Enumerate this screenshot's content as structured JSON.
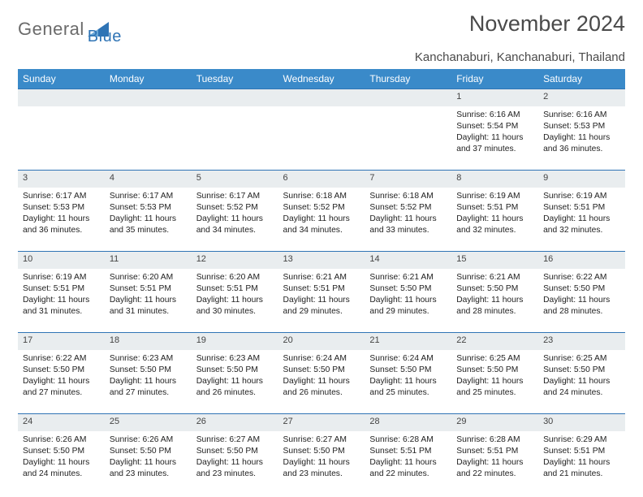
{
  "brand": {
    "part1": "General",
    "part2": "Blue",
    "triangle_color": "#2f74b5"
  },
  "header": {
    "title": "November 2024",
    "location": "Kanchanaburi, Kanchanaburi, Thailand"
  },
  "colors": {
    "header_bg": "#3a8ac9",
    "header_text": "#ffffff",
    "daynum_bg": "#e9edef",
    "cell_border": "#2f74b5",
    "body_text": "#222222",
    "title_text": "#4a4a4a"
  },
  "daynames": [
    "Sunday",
    "Monday",
    "Tuesday",
    "Wednesday",
    "Thursday",
    "Friday",
    "Saturday"
  ],
  "weeks": [
    {
      "nums": [
        "",
        "",
        "",
        "",
        "",
        "1",
        "2"
      ],
      "cells": [
        [],
        [],
        [],
        [],
        [],
        [
          "Sunrise: 6:16 AM",
          "Sunset: 5:54 PM",
          "Daylight: 11 hours",
          "and 37 minutes."
        ],
        [
          "Sunrise: 6:16 AM",
          "Sunset: 5:53 PM",
          "Daylight: 11 hours",
          "and 36 minutes."
        ]
      ]
    },
    {
      "nums": [
        "3",
        "4",
        "5",
        "6",
        "7",
        "8",
        "9"
      ],
      "cells": [
        [
          "Sunrise: 6:17 AM",
          "Sunset: 5:53 PM",
          "Daylight: 11 hours",
          "and 36 minutes."
        ],
        [
          "Sunrise: 6:17 AM",
          "Sunset: 5:53 PM",
          "Daylight: 11 hours",
          "and 35 minutes."
        ],
        [
          "Sunrise: 6:17 AM",
          "Sunset: 5:52 PM",
          "Daylight: 11 hours",
          "and 34 minutes."
        ],
        [
          "Sunrise: 6:18 AM",
          "Sunset: 5:52 PM",
          "Daylight: 11 hours",
          "and 34 minutes."
        ],
        [
          "Sunrise: 6:18 AM",
          "Sunset: 5:52 PM",
          "Daylight: 11 hours",
          "and 33 minutes."
        ],
        [
          "Sunrise: 6:19 AM",
          "Sunset: 5:51 PM",
          "Daylight: 11 hours",
          "and 32 minutes."
        ],
        [
          "Sunrise: 6:19 AM",
          "Sunset: 5:51 PM",
          "Daylight: 11 hours",
          "and 32 minutes."
        ]
      ]
    },
    {
      "nums": [
        "10",
        "11",
        "12",
        "13",
        "14",
        "15",
        "16"
      ],
      "cells": [
        [
          "Sunrise: 6:19 AM",
          "Sunset: 5:51 PM",
          "Daylight: 11 hours",
          "and 31 minutes."
        ],
        [
          "Sunrise: 6:20 AM",
          "Sunset: 5:51 PM",
          "Daylight: 11 hours",
          "and 31 minutes."
        ],
        [
          "Sunrise: 6:20 AM",
          "Sunset: 5:51 PM",
          "Daylight: 11 hours",
          "and 30 minutes."
        ],
        [
          "Sunrise: 6:21 AM",
          "Sunset: 5:51 PM",
          "Daylight: 11 hours",
          "and 29 minutes."
        ],
        [
          "Sunrise: 6:21 AM",
          "Sunset: 5:50 PM",
          "Daylight: 11 hours",
          "and 29 minutes."
        ],
        [
          "Sunrise: 6:21 AM",
          "Sunset: 5:50 PM",
          "Daylight: 11 hours",
          "and 28 minutes."
        ],
        [
          "Sunrise: 6:22 AM",
          "Sunset: 5:50 PM",
          "Daylight: 11 hours",
          "and 28 minutes."
        ]
      ]
    },
    {
      "nums": [
        "17",
        "18",
        "19",
        "20",
        "21",
        "22",
        "23"
      ],
      "cells": [
        [
          "Sunrise: 6:22 AM",
          "Sunset: 5:50 PM",
          "Daylight: 11 hours",
          "and 27 minutes."
        ],
        [
          "Sunrise: 6:23 AM",
          "Sunset: 5:50 PM",
          "Daylight: 11 hours",
          "and 27 minutes."
        ],
        [
          "Sunrise: 6:23 AM",
          "Sunset: 5:50 PM",
          "Daylight: 11 hours",
          "and 26 minutes."
        ],
        [
          "Sunrise: 6:24 AM",
          "Sunset: 5:50 PM",
          "Daylight: 11 hours",
          "and 26 minutes."
        ],
        [
          "Sunrise: 6:24 AM",
          "Sunset: 5:50 PM",
          "Daylight: 11 hours",
          "and 25 minutes."
        ],
        [
          "Sunrise: 6:25 AM",
          "Sunset: 5:50 PM",
          "Daylight: 11 hours",
          "and 25 minutes."
        ],
        [
          "Sunrise: 6:25 AM",
          "Sunset: 5:50 PM",
          "Daylight: 11 hours",
          "and 24 minutes."
        ]
      ]
    },
    {
      "nums": [
        "24",
        "25",
        "26",
        "27",
        "28",
        "29",
        "30"
      ],
      "cells": [
        [
          "Sunrise: 6:26 AM",
          "Sunset: 5:50 PM",
          "Daylight: 11 hours",
          "and 24 minutes."
        ],
        [
          "Sunrise: 6:26 AM",
          "Sunset: 5:50 PM",
          "Daylight: 11 hours",
          "and 23 minutes."
        ],
        [
          "Sunrise: 6:27 AM",
          "Sunset: 5:50 PM",
          "Daylight: 11 hours",
          "and 23 minutes."
        ],
        [
          "Sunrise: 6:27 AM",
          "Sunset: 5:50 PM",
          "Daylight: 11 hours",
          "and 23 minutes."
        ],
        [
          "Sunrise: 6:28 AM",
          "Sunset: 5:51 PM",
          "Daylight: 11 hours",
          "and 22 minutes."
        ],
        [
          "Sunrise: 6:28 AM",
          "Sunset: 5:51 PM",
          "Daylight: 11 hours",
          "and 22 minutes."
        ],
        [
          "Sunrise: 6:29 AM",
          "Sunset: 5:51 PM",
          "Daylight: 11 hours",
          "and 21 minutes."
        ]
      ]
    }
  ]
}
